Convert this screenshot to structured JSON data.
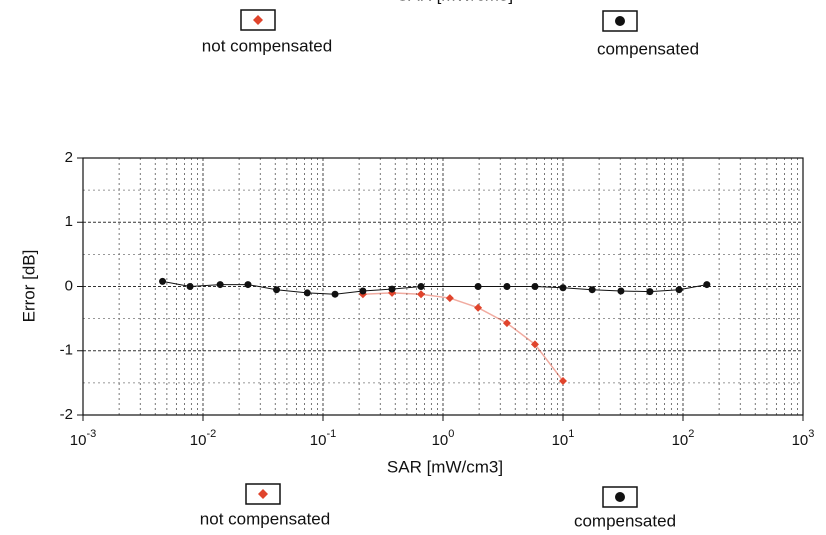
{
  "chart_data": {
    "type": "line",
    "xlabel": "SAR [mW/cm3]",
    "ylabel": "Error [dB]",
    "xscale": "log",
    "xlim": [
      0.001,
      1000
    ],
    "ylim": [
      -2,
      2
    ],
    "xticks": [
      {
        "value": 0.001,
        "label": "10",
        "exponent": "-3"
      },
      {
        "value": 0.01,
        "label": "10",
        "exponent": "-2"
      },
      {
        "value": 0.1,
        "label": "10",
        "exponent": "-1"
      },
      {
        "value": 1,
        "label": "10",
        "exponent": "0"
      },
      {
        "value": 10,
        "label": "10",
        "exponent": "1"
      },
      {
        "value": 100,
        "label": "10",
        "exponent": "2"
      },
      {
        "value": 1000,
        "label": "10",
        "exponent": "3"
      }
    ],
    "yticks": [
      -2,
      -1,
      0,
      1,
      2
    ],
    "grid": true,
    "series": [
      {
        "name": "not compensated",
        "color": "#e0442c",
        "marker": "diamond",
        "x": [
          0.215,
          0.376,
          0.656,
          1.14,
          1.96,
          3.41,
          5.84,
          10
        ],
        "values": [
          -0.12,
          -0.1,
          -0.12,
          -0.18,
          -0.33,
          -0.57,
          -0.9,
          -1.47
        ]
      },
      {
        "name": "compensated",
        "color": "#111111",
        "marker": "circle",
        "x": [
          0.0046,
          0.0078,
          0.0139,
          0.0237,
          0.041,
          0.074,
          0.126,
          0.215,
          0.376,
          0.656,
          1.96,
          3.41,
          5.84,
          10,
          17.5,
          30.4,
          53,
          92.7,
          158
        ],
        "values": [
          0.08,
          0.0,
          0.03,
          0.03,
          -0.05,
          -0.1,
          -0.12,
          -0.07,
          -0.04,
          0.0,
          0.0,
          0.0,
          0.0,
          -0.02,
          -0.05,
          -0.07,
          -0.08,
          -0.05,
          0.03
        ]
      }
    ]
  }
}
